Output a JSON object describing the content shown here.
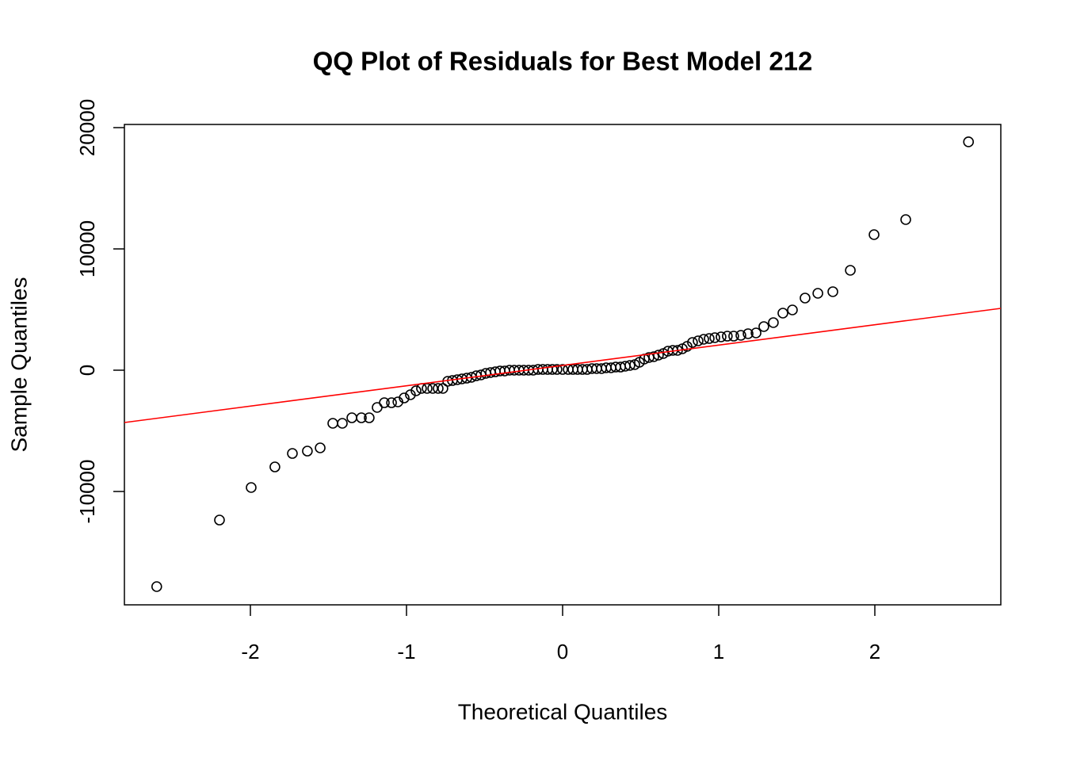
{
  "chart_data": {
    "type": "scatter",
    "title": "QQ Plot of Residuals for Best Model 212",
    "x_label": "Theoretical Quantiles",
    "y_label": "Sample Quantiles",
    "xlim": [
      -2.807,
      2.807
    ],
    "ylim": [
      -19346,
      20261
    ],
    "xticks": [
      -2,
      -1,
      0,
      1,
      2
    ],
    "yticks": [
      -10000,
      0,
      10000,
      20000
    ],
    "grid": false,
    "color": "#000000",
    "x": [
      -2.6,
      -2.198,
      -1.995,
      -1.843,
      -1.731,
      -1.635,
      -1.553,
      -1.472,
      -1.411,
      -1.35,
      -1.289,
      -1.239,
      -1.188,
      -1.142,
      -1.096,
      -1.055,
      -1.015,
      -0.975,
      -0.939,
      -0.904,
      -0.868,
      -0.832,
      -0.797,
      -0.767,
      -0.736,
      -0.706,
      -0.675,
      -0.645,
      -0.614,
      -0.584,
      -0.553,
      -0.523,
      -0.492,
      -0.462,
      -0.431,
      -0.401,
      -0.371,
      -0.34,
      -0.31,
      -0.279,
      -0.249,
      -0.218,
      -0.188,
      -0.157,
      -0.127,
      -0.096,
      -0.066,
      -0.036,
      0,
      0.036,
      0.066,
      0.096,
      0.127,
      0.157,
      0.188,
      0.218,
      0.249,
      0.279,
      0.31,
      0.34,
      0.371,
      0.401,
      0.431,
      0.462,
      0.492,
      0.523,
      0.553,
      0.584,
      0.614,
      0.645,
      0.675,
      0.706,
      0.736,
      0.767,
      0.797,
      0.832,
      0.868,
      0.904,
      0.939,
      0.975,
      1.015,
      1.055,
      1.096,
      1.142,
      1.188,
      1.239,
      1.289,
      1.35,
      1.411,
      1.472,
      1.553,
      1.635,
      1.731,
      1.843,
      1.995,
      2.198,
      2.6
    ],
    "values": [
      -17843,
      -12353,
      -9673,
      -7974,
      -6863,
      -6667,
      -6405,
      -4379,
      -4379,
      -3922,
      -3922,
      -3922,
      -3072,
      -2680,
      -2680,
      -2614,
      -2288,
      -2026,
      -1699,
      -1503,
      -1503,
      -1503,
      -1503,
      -1503,
      -915,
      -850,
      -784,
      -719,
      -654,
      -588,
      -458,
      -392,
      -261,
      -196,
      -131,
      -65,
      -65,
      0,
      0,
      0,
      0,
      0,
      0,
      65,
      65,
      65,
      65,
      65,
      65,
      65,
      65,
      65,
      65,
      65,
      131,
      131,
      131,
      196,
      196,
      261,
      261,
      327,
      392,
      458,
      654,
      915,
      1046,
      1111,
      1242,
      1373,
      1569,
      1634,
      1634,
      1765,
      1961,
      2288,
      2418,
      2549,
      2614,
      2680,
      2745,
      2810,
      2810,
      2876,
      3007,
      3072,
      3595,
      3922,
      4706,
      4967,
      5948,
      6340,
      6471,
      8235,
      11176,
      12418,
      18824
    ],
    "reference_line": {
      "color": "#ff0000",
      "x": [
        -2.807,
        2.807
      ],
      "values": [
        -4314,
        5098
      ]
    }
  }
}
